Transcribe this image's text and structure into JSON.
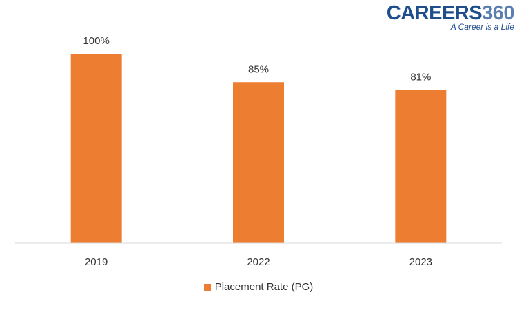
{
  "logo": {
    "brand_a": "CAREERS",
    "brand_b": "360",
    "tagline": "A Career is a Life"
  },
  "colors": {
    "bar": "#ed7d31",
    "axis": "#d9d9d9",
    "text": "#333333"
  },
  "chart_data": {
    "type": "bar",
    "categories": [
      "2019",
      "2022",
      "2023"
    ],
    "series": [
      {
        "name": "Placement Rate (PG)",
        "values": [
          100,
          85,
          81
        ],
        "labels": [
          "100%",
          "85%",
          "81%"
        ]
      }
    ],
    "ylim": [
      0,
      100
    ],
    "grid": false,
    "legend_position": "bottom"
  }
}
